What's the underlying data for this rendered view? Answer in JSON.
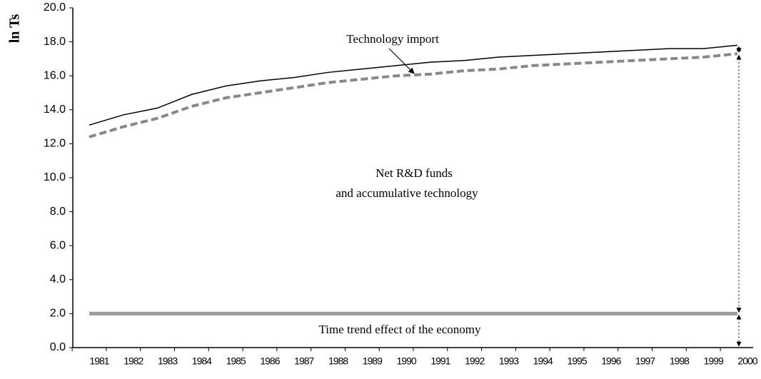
{
  "chart_data": {
    "type": "line",
    "y_label": "ln Ts",
    "categories": [
      "1981",
      "1982",
      "1983",
      "1984",
      "1985",
      "1986",
      "1987",
      "1988",
      "1989",
      "1990",
      "1991",
      "1992",
      "1993",
      "1994",
      "1995",
      "1996",
      "1997",
      "1998",
      "1999",
      "2000"
    ],
    "series": [
      {
        "color": "#000000",
        "dash": false,
        "width": 1.5,
        "values": [
          13.1,
          13.7,
          14.1,
          14.9,
          15.4,
          15.7,
          15.9,
          16.2,
          16.4,
          16.6,
          16.8,
          16.9,
          17.1,
          17.2,
          17.3,
          17.4,
          17.5,
          17.6,
          17.6,
          17.8
        ]
      },
      {
        "color": "#888888",
        "dash": true,
        "width": 4,
        "values": [
          12.4,
          13.0,
          13.5,
          14.2,
          14.7,
          15.0,
          15.3,
          15.6,
          15.8,
          16.0,
          16.1,
          16.3,
          16.4,
          16.6,
          16.7,
          16.8,
          16.9,
          17.0,
          17.1,
          17.3
        ]
      },
      {
        "color": "#9a9a9a",
        "dash": false,
        "width": 5,
        "values": [
          2.0,
          2.0,
          2.0,
          2.0,
          2.0,
          2.0,
          2.0,
          2.0,
          2.0,
          2.0,
          2.0,
          2.0,
          2.0,
          2.0,
          2.0,
          2.0,
          2.0,
          2.0,
          2.0,
          2.0
        ]
      }
    ],
    "ylim": [
      0,
      20
    ],
    "yticks": [
      {
        "value": 0,
        "label": "0.0"
      },
      {
        "value": 2,
        "label": "2.0"
      },
      {
        "value": 4,
        "label": "4.0"
      },
      {
        "value": 6,
        "label": "6.0"
      },
      {
        "value": 8,
        "label": "8.0"
      },
      {
        "value": 10,
        "label": "10.0"
      },
      {
        "value": 12,
        "label": "12.0"
      },
      {
        "value": 14,
        "label": "14.0"
      },
      {
        "value": 16,
        "label": "16.0"
      },
      {
        "value": 18,
        "label": "18.0"
      },
      {
        "value": 20,
        "label": "20.0"
      }
    ],
    "annotations": [
      "Technology import",
      "Net R&D funds",
      "and accumulative technology",
      "Time trend effect of the economy"
    ]
  }
}
